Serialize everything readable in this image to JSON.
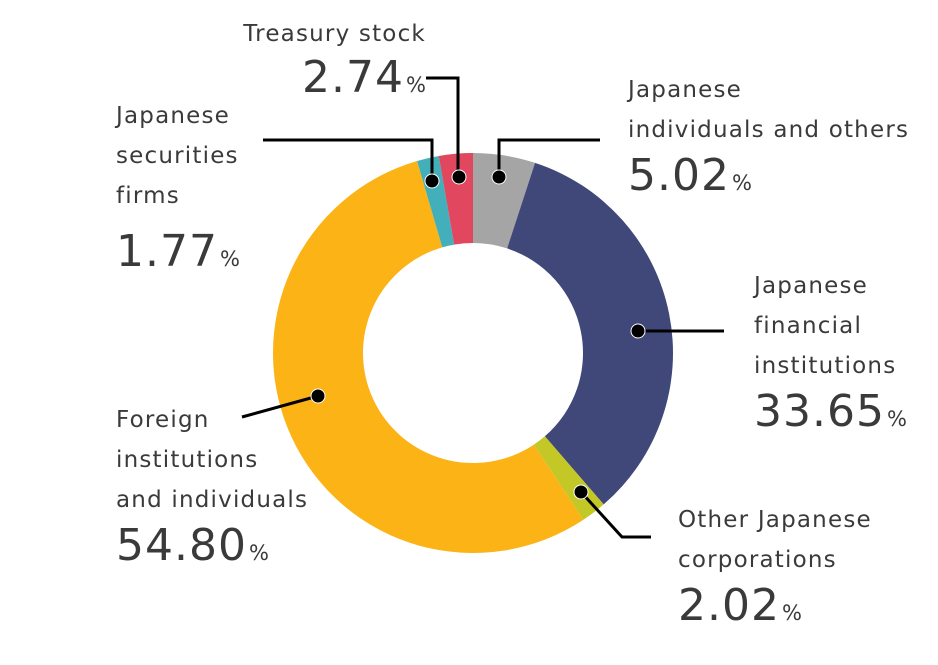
{
  "chart_data": {
    "type": "pie",
    "subtype": "donut",
    "title": "",
    "start_angle_deg": 0,
    "direction": "clockwise",
    "unit": "%",
    "categories": [
      "Japanese individuals and others",
      "Japanese financial institutions",
      "Other Japanese corporations",
      "Foreign institutions and individuals",
      "Japanese securities firms",
      "Treasury stock"
    ],
    "values": [
      5.02,
      33.65,
      2.02,
      54.8,
      1.77,
      2.74
    ],
    "colors": [
      "#a5a5a5",
      "#3f4879",
      "#c3c826",
      "#fbb316",
      "#43afba",
      "#e1485f"
    ],
    "legend_position": "callout-labels"
  },
  "labels": {
    "individuals": {
      "lines": [
        "Japanese",
        "individuals and others"
      ],
      "value": "5.02",
      "unit": "%"
    },
    "financial": {
      "lines": [
        "Japanese",
        "financial",
        "institutions"
      ],
      "value": "33.65",
      "unit": "%"
    },
    "corporations": {
      "lines": [
        "Other Japanese",
        "corporations"
      ],
      "value": "2.02",
      "unit": "%"
    },
    "foreign": {
      "lines": [
        "Foreign",
        "institutions",
        "and individuals"
      ],
      "value": "54.80",
      "unit": "%"
    },
    "securities": {
      "lines": [
        "Japanese",
        "securities",
        "firms"
      ],
      "value": "1.77",
      "unit": "%"
    },
    "treasury": {
      "lines": [
        "Treasury stock"
      ],
      "value": "2.74",
      "unit": "%"
    }
  }
}
